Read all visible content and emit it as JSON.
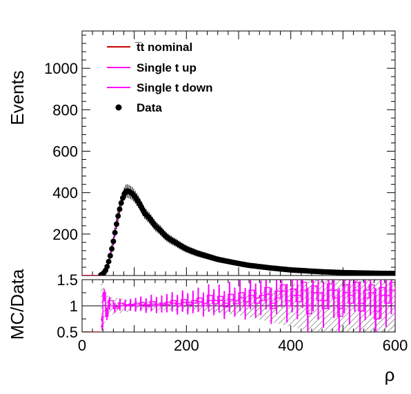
{
  "colors": {
    "nominal": "#cc0000",
    "single_t_up": "#ff00ff",
    "single_t_down": "#ff00ff",
    "data": "#000000",
    "uncertainty_hatch": "#000000"
  },
  "chart_data": [
    {
      "type": "line",
      "panel": "main",
      "xlabel": "",
      "ylabel": "Events",
      "xlim": [
        0,
        600
      ],
      "ylim": [
        0,
        1180
      ],
      "y_ticks": [
        200,
        400,
        600,
        800,
        1000
      ],
      "y_tick_labels": [
        "200",
        "400",
        "600",
        "800",
        "1000"
      ],
      "grid": false,
      "legend_position": "top-left",
      "legend": [
        {
          "label": "t̅t nominal",
          "style": "line",
          "color": "#cc0000"
        },
        {
          "label": "Single t up",
          "style": "line",
          "color": "#ff00ff"
        },
        {
          "label": "Single t down",
          "style": "line",
          "color": "#ff00ff"
        },
        {
          "label": "Data",
          "style": "marker",
          "color": "#000000"
        }
      ],
      "x": [
        0,
        10,
        20,
        30,
        34,
        38,
        42,
        46,
        50,
        55,
        60,
        65,
        70,
        75,
        80,
        85,
        90,
        95,
        100,
        110,
        120,
        130,
        140,
        150,
        160,
        170,
        180,
        190,
        200,
        220,
        240,
        260,
        280,
        300,
        320,
        340,
        360,
        380,
        400,
        420,
        440,
        460,
        480,
        500,
        520,
        540,
        560,
        580,
        600
      ],
      "series": [
        {
          "name": "t̅t nominal",
          "values": [
            0,
            0,
            0,
            0,
            0,
            6,
            15,
            30,
            60,
            110,
            170,
            240,
            310,
            360,
            395,
            410,
            405,
            395,
            380,
            345,
            305,
            275,
            245,
            220,
            195,
            175,
            160,
            145,
            130,
            110,
            95,
            80,
            70,
            60,
            50,
            44,
            38,
            33,
            28,
            25,
            22,
            19,
            17,
            15,
            14,
            13,
            12,
            11,
            10
          ]
        },
        {
          "name": "Single t up",
          "values": [
            0,
            0,
            0,
            0,
            0,
            7,
            16,
            32,
            62,
            114,
            175,
            246,
            316,
            366,
            402,
            417,
            412,
            402,
            387,
            352,
            312,
            282,
            252,
            226,
            201,
            180,
            165,
            149,
            134,
            113,
            98,
            83,
            72,
            62,
            52,
            45,
            39,
            34,
            29,
            26,
            23,
            20,
            18,
            16,
            15,
            14,
            13,
            12,
            11
          ]
        },
        {
          "name": "Single t down",
          "values": [
            0,
            0,
            0,
            0,
            0,
            6,
            15,
            31,
            61,
            112,
            172,
            243,
            313,
            363,
            398,
            413,
            408,
            398,
            383,
            348,
            308,
            278,
            248,
            223,
            198,
            177,
            162,
            147,
            132,
            111,
            96,
            81,
            71,
            61,
            51,
            44,
            38,
            33,
            28,
            25,
            22,
            19,
            17,
            15,
            14,
            13,
            12,
            11,
            10
          ]
        },
        {
          "name": "Data",
          "values": [
            0,
            0,
            0,
            0,
            0,
            5,
            14,
            28,
            58,
            105,
            165,
            235,
            300,
            350,
            390,
            410,
            405,
            398,
            385,
            348,
            300,
            275,
            240,
            218,
            190,
            172,
            158,
            142,
            128,
            108,
            93,
            78,
            68,
            58,
            49,
            43,
            37,
            32,
            27,
            24,
            21,
            18,
            16,
            14,
            13,
            12,
            11,
            10,
            10
          ]
        }
      ]
    },
    {
      "type": "line",
      "panel": "ratio",
      "xlabel": "ρ",
      "ylabel": "MC/Data",
      "xlim": [
        0,
        600
      ],
      "ylim": [
        0.5,
        1.5
      ],
      "x_ticks": [
        0,
        200,
        400,
        600
      ],
      "x_tick_labels": [
        "0",
        "200",
        "400",
        "600"
      ],
      "y_ticks": [
        0.5,
        1,
        1.5
      ],
      "y_tick_labels": [
        "0.5",
        "1",
        "1.5"
      ],
      "reference_line": 1,
      "uncertainty_band": {
        "x": [
          36,
          50,
          100,
          150,
          200,
          250,
          300,
          350,
          400,
          450,
          500,
          550,
          600
        ],
        "half_width": [
          0.5,
          0.18,
          0.09,
          0.08,
          0.09,
          0.12,
          0.18,
          0.28,
          0.4,
          0.5,
          0.5,
          0.5,
          0.5
        ]
      },
      "series": [
        {
          "name": "Single t up",
          "x": [
            36,
            40,
            45,
            50,
            60,
            70,
            80,
            90,
            100,
            110,
            120,
            130,
            140,
            150,
            160,
            170,
            180,
            190,
            200,
            210,
            220,
            230,
            240,
            250,
            260,
            270,
            280,
            290,
            300,
            310,
            320,
            330,
            340,
            350,
            360,
            370,
            380,
            390,
            400,
            410,
            420,
            430,
            440,
            450,
            460,
            470,
            480,
            490,
            500,
            510,
            520,
            530,
            540,
            550,
            560,
            570,
            580,
            590,
            600
          ],
          "values": [
            0.75,
            1.25,
            0.9,
            1.1,
            0.98,
            1.05,
            1.02,
            1.03,
            1.04,
            1.06,
            1.02,
            1.08,
            1.03,
            1.05,
            1.07,
            1.1,
            1.04,
            1.12,
            1.06,
            1.1,
            1.15,
            1.05,
            1.2,
            1.1,
            1.18,
            1.05,
            1.22,
            1.1,
            1.25,
            1.08,
            1.3,
            1.15,
            1.2,
            1.35,
            1.05,
            1.28,
            1.4,
            1.1,
            1.32,
            1.2,
            1.45,
            1.0,
            1.38,
            1.25,
            1.1,
            1.42,
            1.3,
            0.95,
            1.4,
            1.2,
            1.45,
            1.05,
            1.3,
            1.4,
            0.9,
            1.35,
            1.2,
            1.45,
            0.85
          ]
        },
        {
          "name": "Single t down",
          "x": [
            36,
            40,
            45,
            50,
            60,
            70,
            80,
            90,
            100,
            110,
            120,
            130,
            140,
            150,
            160,
            170,
            180,
            190,
            200,
            210,
            220,
            230,
            240,
            250,
            260,
            270,
            280,
            290,
            300,
            310,
            320,
            330,
            340,
            350,
            360,
            370,
            380,
            390,
            400,
            410,
            420,
            430,
            440,
            450,
            460,
            470,
            480,
            490,
            500,
            510,
            520,
            530,
            540,
            550,
            560,
            570,
            580,
            590,
            600
          ],
          "values": [
            0.6,
            1.15,
            0.8,
            1.0,
            0.95,
            1.0,
            1.0,
            1.01,
            1.0,
            1.02,
            0.99,
            1.03,
            1.0,
            1.02,
            1.03,
            1.05,
            1.0,
            1.06,
            1.02,
            1.05,
            1.08,
            1.0,
            1.1,
            1.04,
            1.1,
            0.98,
            1.12,
            1.04,
            1.15,
            1.0,
            1.2,
            1.05,
            1.1,
            1.22,
            0.95,
            1.15,
            1.28,
            1.0,
            1.2,
            1.08,
            1.3,
            0.85,
            1.25,
            1.1,
            0.95,
            1.3,
            1.15,
            0.8,
            1.25,
            1.05,
            1.3,
            0.9,
            1.15,
            1.25,
            0.75,
            1.2,
            1.05,
            1.3,
            0.7
          ]
        }
      ]
    }
  ]
}
